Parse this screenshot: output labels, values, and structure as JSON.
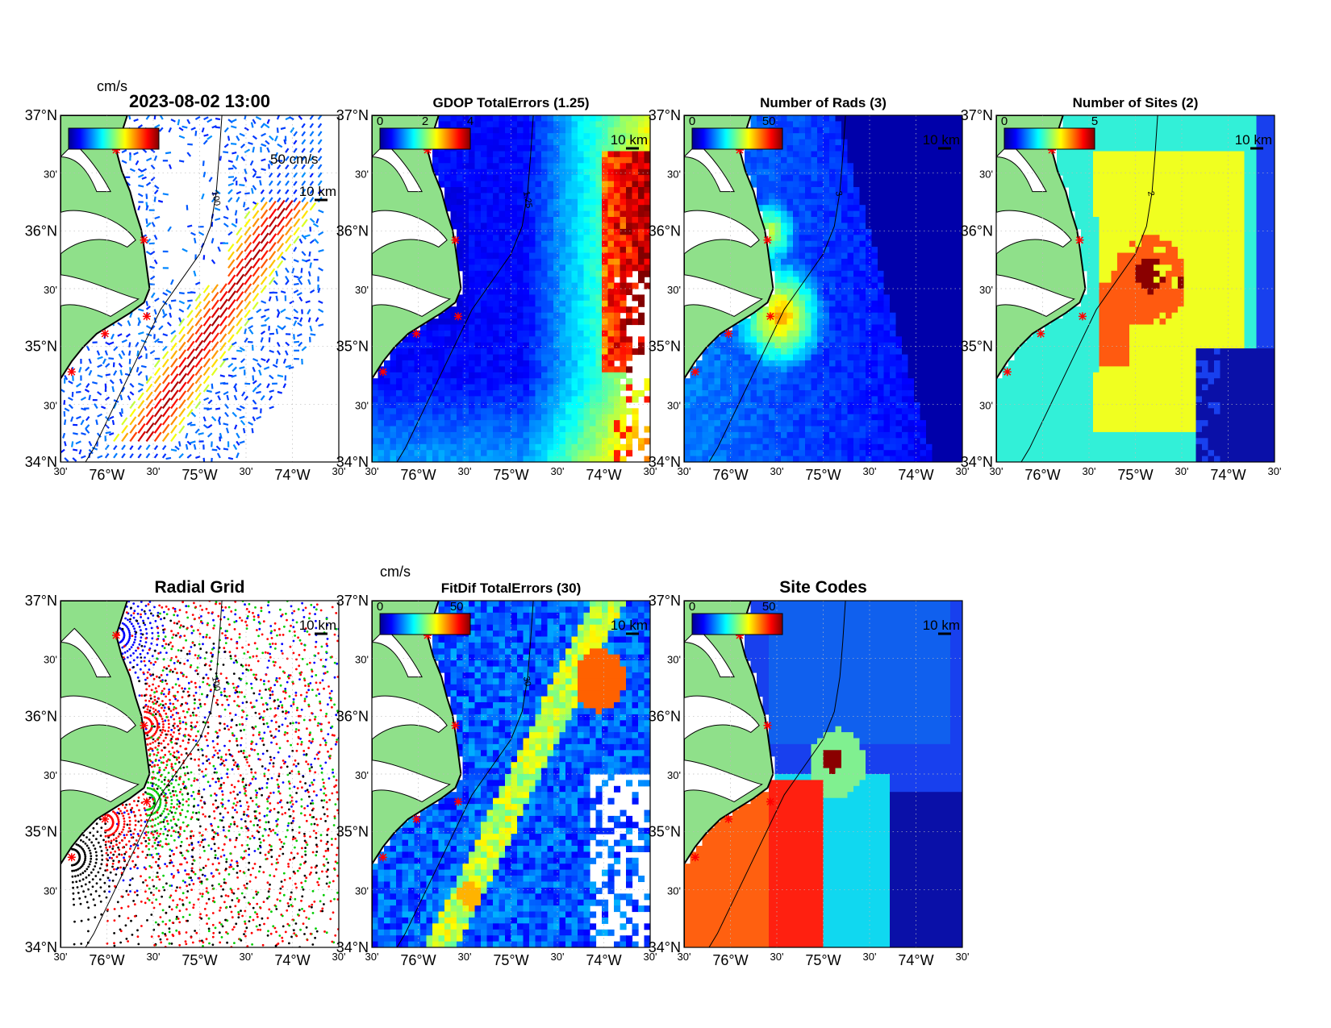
{
  "timestamp": "2023-08-02 13:00",
  "colors": {
    "land": "#8fe08a",
    "coast": "#000000",
    "ocean_dark": "#0a10a8",
    "ocean_blue": "#1840ee",
    "ocean_mid": "#2f7af0",
    "cyan": "#32f0d8",
    "yellow": "#f0ff20",
    "orange": "#ff5a10",
    "red": "#ff2010",
    "darkred": "#8a0000",
    "site_marker": "#ff0000"
  },
  "axes": {
    "lat_ticks": [
      "37°N",
      "30'",
      "36°N",
      "30'",
      "35°N",
      "30'",
      "34°N"
    ],
    "lon_ticks": [
      "30'",
      "76°W",
      "30'",
      "75°W",
      "30'",
      "74°W",
      "30'"
    ]
  },
  "scale_label": "10 km",
  "panels": [
    {
      "id": "totals",
      "title": "2023-08-02 13:00",
      "unit_label": "cm/s",
      "ref_vector_label": "50 cm/s",
      "colorbar_ticks": [],
      "contour_label": "100",
      "field": "vectors"
    },
    {
      "id": "gdop",
      "title": "GDOP TotalErrors (1.25)",
      "colorbar_ticks": [
        "0",
        "2",
        "4"
      ],
      "contour_label": "1.25",
      "field": "gdop"
    },
    {
      "id": "nrads",
      "title": "Number of Rads (3)",
      "colorbar_ticks": [
        "0",
        "50"
      ],
      "contour_label": "3",
      "field": "nrads"
    },
    {
      "id": "nsites",
      "title": "Number of Sites (2)",
      "colorbar_ticks": [
        "0",
        "5"
      ],
      "contour_label": "2",
      "field": "nsites"
    },
    {
      "id": "radialgrid",
      "title": "Radial Grid",
      "colorbar_ticks": [],
      "contour_label": "100",
      "field": "radial"
    },
    {
      "id": "fitdif",
      "title": "FitDif TotalErrors (30)",
      "unit_label": "cm/s",
      "colorbar_ticks": [
        "0",
        "50"
      ],
      "contour_label": "30",
      "field": "fitdif"
    },
    {
      "id": "sitecodes",
      "title": "Site Codes",
      "colorbar_ticks": [
        "0",
        "50"
      ],
      "contour_label": "",
      "field": "sitecodes"
    }
  ]
}
